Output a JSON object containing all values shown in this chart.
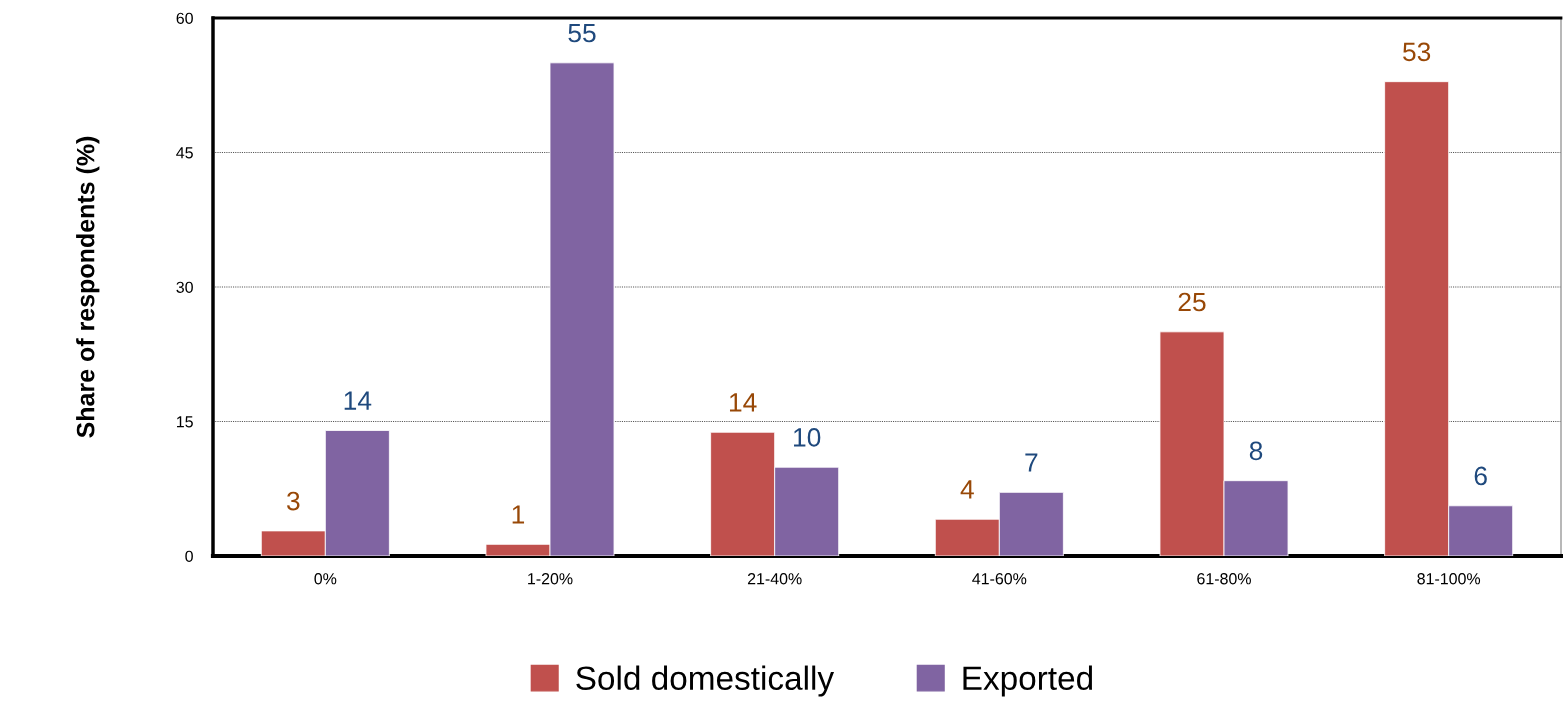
{
  "chart_data": {
    "type": "bar",
    "ylabel": "Share of respondents (%)",
    "categories": [
      "0%",
      "1-20%",
      "21-40%",
      "41-60%",
      "61-80%",
      "81-100%"
    ],
    "series": [
      {
        "name": "Sold domestically",
        "color": "#c0504d",
        "values": [
          2.8,
          1.3,
          13.8,
          4.1,
          25.0,
          52.9
        ],
        "value_labels": [
          "3",
          "1",
          "14",
          "4",
          "25",
          "53"
        ]
      },
      {
        "name": "Exported",
        "color": "#8064a2",
        "values": [
          14.0,
          55.0,
          9.9,
          7.1,
          8.4,
          5.6
        ],
        "value_labels": [
          "14",
          "55",
          "10",
          "7",
          "8",
          "6"
        ]
      }
    ],
    "ylim": [
      0,
      60
    ],
    "yticks": [
      0,
      15,
      30,
      45,
      60
    ],
    "grid": "y",
    "legend": "bottom"
  }
}
